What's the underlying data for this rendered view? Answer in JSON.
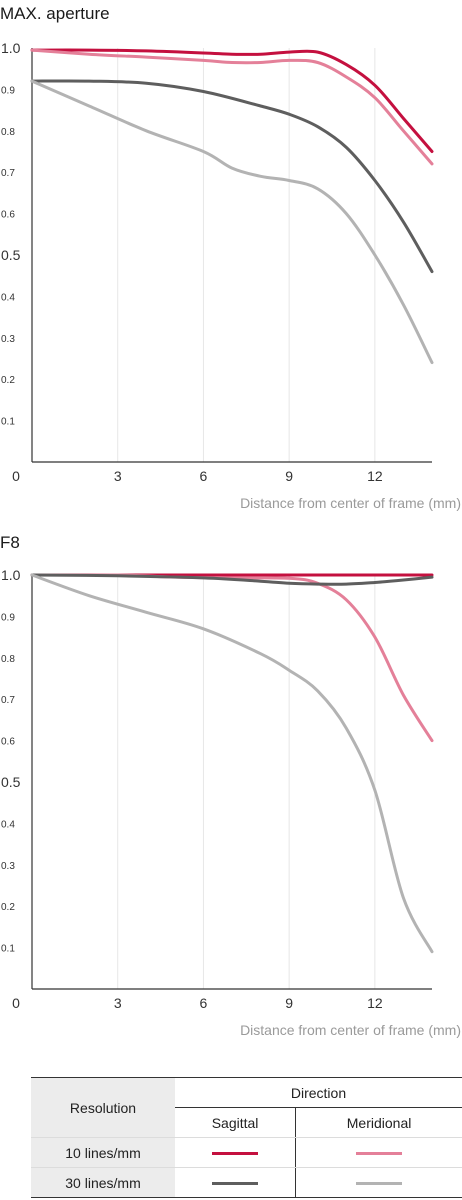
{
  "chart_data": [
    {
      "type": "line",
      "title": "MAX. aperture",
      "xlabel": "Distance from center of frame (mm)",
      "ylabel": "",
      "xlim": [
        0,
        14
      ],
      "ylim": [
        0,
        1.0
      ],
      "x_ticks": [
        "0",
        "3",
        "6",
        "9",
        "12"
      ],
      "y_ticks": [
        "1.0",
        "0.9",
        "0.8",
        "0.7",
        "0.6",
        "0.5",
        "0.4",
        "0.3",
        "0.2",
        "0.1"
      ],
      "grid": "vertical",
      "series": [
        {
          "color": "#c4103f",
          "x": [
            0,
            2,
            4,
            6,
            7,
            8,
            9,
            10,
            11,
            12,
            13,
            14
          ],
          "values": [
            0.995,
            0.995,
            0.993,
            0.988,
            0.985,
            0.985,
            0.99,
            0.99,
            0.96,
            0.91,
            0.83,
            0.75
          ]
        },
        {
          "color": "#e48099",
          "x": [
            0,
            2,
            4,
            6,
            7,
            8,
            9,
            10,
            11,
            12,
            13,
            14
          ],
          "values": [
            0.995,
            0.985,
            0.978,
            0.97,
            0.965,
            0.965,
            0.97,
            0.965,
            0.93,
            0.88,
            0.8,
            0.72
          ]
        },
        {
          "color": "#5e5e5e",
          "x": [
            0,
            2,
            4,
            6,
            8,
            9,
            10,
            11,
            12,
            13,
            14
          ],
          "values": [
            0.92,
            0.92,
            0.915,
            0.895,
            0.86,
            0.84,
            0.81,
            0.76,
            0.68,
            0.58,
            0.46
          ]
        },
        {
          "color": "#b3b3b3",
          "x": [
            0,
            2,
            4,
            6,
            7,
            8,
            9,
            10,
            11,
            12,
            13,
            14
          ],
          "values": [
            0.92,
            0.86,
            0.8,
            0.75,
            0.71,
            0.69,
            0.68,
            0.66,
            0.6,
            0.5,
            0.38,
            0.24
          ]
        }
      ]
    },
    {
      "type": "line",
      "title": "F8",
      "xlabel": "Distance from center of frame (mm)",
      "ylabel": "",
      "xlim": [
        0,
        14
      ],
      "ylim": [
        0,
        1.0
      ],
      "x_ticks": [
        "0",
        "3",
        "6",
        "9",
        "12"
      ],
      "y_ticks": [
        "1.0",
        "0.9",
        "0.8",
        "0.7",
        "0.6",
        "0.5",
        "0.4",
        "0.3",
        "0.2",
        "0.1"
      ],
      "grid": "vertical",
      "series": [
        {
          "color": "#c4103f",
          "x": [
            0,
            4,
            8,
            12,
            14
          ],
          "values": [
            1.0,
            1.0,
            1.0,
            1.0,
            1.0
          ]
        },
        {
          "color": "#e48099",
          "x": [
            0,
            3,
            5,
            7,
            9,
            10,
            11,
            12,
            13,
            14
          ],
          "values": [
            1.0,
            1.0,
            0.995,
            0.993,
            0.992,
            0.98,
            0.94,
            0.85,
            0.71,
            0.6
          ]
        },
        {
          "color": "#5e5e5e",
          "x": [
            0,
            3,
            6,
            8,
            9,
            10,
            11,
            12,
            13,
            14
          ],
          "values": [
            1.0,
            0.998,
            0.993,
            0.985,
            0.98,
            0.978,
            0.978,
            0.982,
            0.988,
            0.995
          ]
        },
        {
          "color": "#b3b3b3",
          "x": [
            0,
            2,
            4,
            6,
            8,
            9,
            10,
            11,
            12,
            13,
            14
          ],
          "values": [
            1.0,
            0.95,
            0.91,
            0.87,
            0.81,
            0.77,
            0.72,
            0.63,
            0.48,
            0.22,
            0.09
          ]
        }
      ]
    }
  ],
  "legend": {
    "resolution_header": "Resolution",
    "direction_header": "Direction",
    "sagittal_header": "Sagittal",
    "meridional_header": "Meridional",
    "rows": [
      {
        "label": "10 lines/mm",
        "sagittal_color": "#c4103f",
        "meridional_color": "#e48099"
      },
      {
        "label": "30 lines/mm",
        "sagittal_color": "#5e5e5e",
        "meridional_color": "#b3b3b3"
      }
    ]
  }
}
